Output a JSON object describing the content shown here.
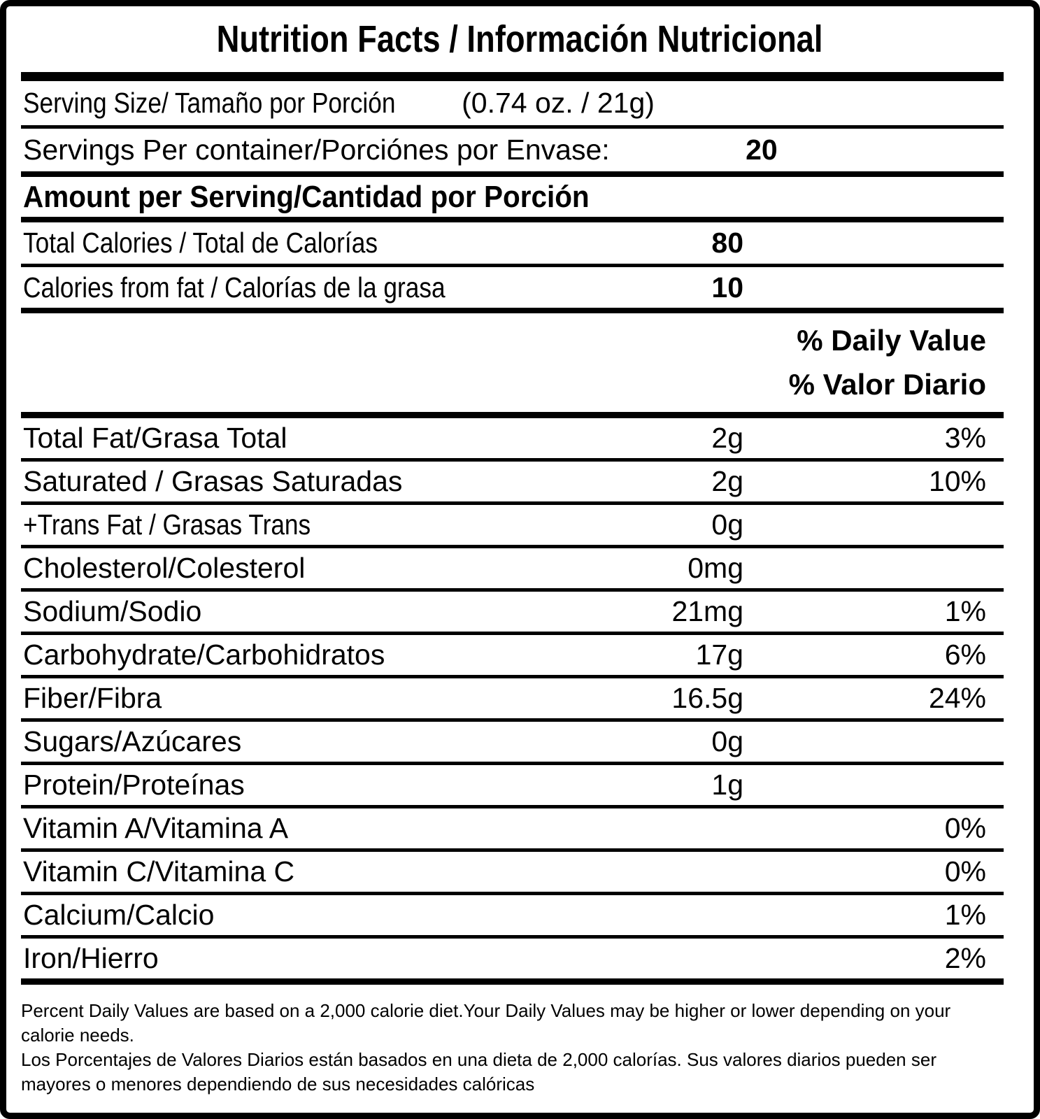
{
  "title": "Nutrition Facts / Información Nutricional",
  "serving_size": {
    "label": "Serving Size/ Tamaño por Porción",
    "value": "(0.74 oz. / 21g)"
  },
  "servings_per_container": {
    "label": "Servings Per container/Porciónes por Envase:",
    "value": "20"
  },
  "amount_header": "Amount per Serving/Cantidad por Porción",
  "calorie_rows": [
    {
      "label": "Total Calories / Total de Calorías",
      "value": "80"
    },
    {
      "label": "Calories from fat / Calorías de la grasa",
      "value": "10"
    }
  ],
  "dv_header_en": "% Daily Value",
  "dv_header_es": "% Valor Diario",
  "nutrient_rows": [
    {
      "label": "Total Fat/Grasa Total",
      "amount": "2g",
      "dv": "3%"
    },
    {
      "label": "Saturated / Grasas Saturadas",
      "amount": "2g",
      "dv": "10%"
    },
    {
      "label": "+Trans Fat / Grasas Trans",
      "amount": "0g",
      "dv": ""
    },
    {
      "label": "Cholesterol/Colesterol",
      "amount": "0mg",
      "dv": ""
    },
    {
      "label": "Sodium/Sodio",
      "amount": "21mg",
      "dv": "1%"
    },
    {
      "label": "Carbohydrate/Carbohidratos",
      "amount": "17g",
      "dv": "6%"
    },
    {
      "label": "Fiber/Fibra",
      "amount": "16.5g",
      "dv": "24%"
    },
    {
      "label": "Sugars/Azúcares",
      "amount": "0g",
      "dv": ""
    },
    {
      "label": "Protein/Proteínas",
      "amount": "1g",
      "dv": ""
    },
    {
      "label": "Vitamin A/Vitamina A",
      "amount": "",
      "dv": "0%"
    },
    {
      "label": "Vitamin C/Vitamina C",
      "amount": "",
      "dv": "0%"
    },
    {
      "label": "Calcium/Calcio",
      "amount": "",
      "dv": "1%"
    },
    {
      "label": "Iron/Hierro",
      "amount": "",
      "dv": "2%"
    }
  ],
  "footnotes": {
    "en": "Percent Daily Values are based on a 2,000 calorie diet.Your Daily Values may be higher or lower depending on your calorie needs.",
    "es": "Los Porcentajes de Valores Diarios están basados en una dieta de 2,000 calorías. Sus valores diarios pueden ser mayores o menores dependiendo de sus necesidades calóricas"
  }
}
